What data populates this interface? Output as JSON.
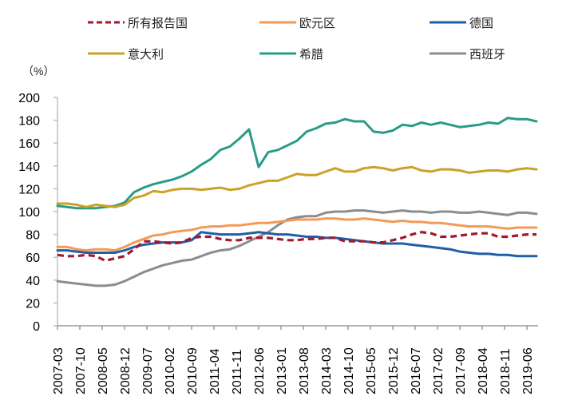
{
  "chart_data": {
    "type": "line",
    "title": "",
    "ylabel": "（%）",
    "xlabel": "",
    "ylim": [
      0,
      200
    ],
    "yticks": [
      0,
      20,
      40,
      60,
      80,
      100,
      120,
      140,
      160,
      180,
      200
    ],
    "grid": false,
    "legend_position": "top",
    "x_tick_labels": [
      "2007-03",
      "2007-10",
      "2008-05",
      "2008-12",
      "2009-07",
      "2010-02",
      "2010-09",
      "2011-04",
      "2011-11",
      "2012-06",
      "2013-01",
      "2013-08",
      "2014-03",
      "2014-10",
      "2015-05",
      "2015-12",
      "2016-07",
      "2017-02",
      "2017-09",
      "2018-04",
      "2018-11",
      "2019-06"
    ],
    "x": [
      "2007-03",
      "2007-06",
      "2007-09",
      "2007-12",
      "2008-03",
      "2008-06",
      "2008-09",
      "2008-12",
      "2009-03",
      "2009-06",
      "2009-09",
      "2009-12",
      "2010-03",
      "2010-06",
      "2010-09",
      "2010-12",
      "2011-03",
      "2011-06",
      "2011-09",
      "2011-12",
      "2012-03",
      "2012-06",
      "2012-09",
      "2012-12",
      "2013-03",
      "2013-06",
      "2013-09",
      "2013-12",
      "2014-03",
      "2014-06",
      "2014-09",
      "2014-12",
      "2015-03",
      "2015-06",
      "2015-09",
      "2015-12",
      "2016-03",
      "2016-06",
      "2016-09",
      "2016-12",
      "2017-03",
      "2017-06",
      "2017-09",
      "2017-12",
      "2018-03",
      "2018-06",
      "2018-09",
      "2018-12",
      "2019-03",
      "2019-06",
      "2019-09"
    ],
    "series": [
      {
        "name": "所有报告国",
        "color": "#A3172F",
        "dashed": true,
        "values": [
          62,
          61,
          61,
          62,
          61,
          57,
          59,
          61,
          67,
          74,
          74,
          73,
          72,
          73,
          77,
          78,
          78,
          76,
          75,
          75,
          77,
          77,
          77,
          76,
          75,
          75,
          76,
          76,
          77,
          77,
          74,
          74,
          74,
          73,
          73,
          75,
          77,
          80,
          82,
          81,
          78,
          78,
          79,
          80,
          81,
          81,
          78,
          78,
          79,
          80,
          80
        ]
      },
      {
        "name": "欧元区",
        "color": "#F39A56",
        "dashed": false,
        "values": [
          69,
          69,
          67,
          66,
          67,
          67,
          66,
          69,
          73,
          76,
          79,
          80,
          82,
          83,
          84,
          86,
          87,
          87,
          88,
          88,
          89,
          90,
          90,
          91,
          92,
          93,
          93,
          93,
          94,
          94,
          93,
          93,
          94,
          93,
          92,
          91,
          92,
          91,
          91,
          90,
          90,
          89,
          88,
          87,
          87,
          87,
          86,
          85,
          86,
          86,
          86
        ]
      },
      {
        "name": "德国",
        "color": "#1F5FA8",
        "dashed": false,
        "values": [
          66,
          66,
          65,
          64,
          64,
          64,
          64,
          66,
          69,
          71,
          72,
          73,
          73,
          73,
          75,
          82,
          81,
          80,
          80,
          80,
          81,
          82,
          81,
          80,
          80,
          79,
          78,
          78,
          77,
          77,
          76,
          75,
          74,
          73,
          72,
          72,
          72,
          71,
          70,
          69,
          68,
          67,
          65,
          64,
          63,
          63,
          62,
          62,
          61,
          61,
          61
        ]
      },
      {
        "name": "意大利",
        "color": "#C9A227",
        "dashed": false,
        "values": [
          107,
          107,
          106,
          104,
          106,
          105,
          104,
          106,
          112,
          114,
          118,
          117,
          119,
          120,
          120,
          119,
          120,
          121,
          119,
          120,
          123,
          125,
          127,
          127,
          130,
          133,
          132,
          132,
          135,
          138,
          135,
          135,
          138,
          139,
          138,
          136,
          138,
          139,
          136,
          135,
          137,
          137,
          136,
          134,
          135,
          136,
          136,
          135,
          137,
          138,
          137
        ]
      },
      {
        "name": "希腊",
        "color": "#2A9C86",
        "dashed": false,
        "values": [
          105,
          104,
          103,
          103,
          103,
          104,
          105,
          108,
          117,
          121,
          124,
          126,
          128,
          131,
          135,
          141,
          146,
          154,
          157,
          164,
          172,
          139,
          152,
          154,
          158,
          162,
          170,
          173,
          177,
          178,
          181,
          179,
          179,
          170,
          169,
          171,
          176,
          175,
          178,
          176,
          178,
          176,
          174,
          175,
          176,
          178,
          177,
          182,
          181,
          181,
          179
        ]
      },
      {
        "name": "西班牙",
        "color": "#8C8C8C",
        "dashed": false,
        "values": [
          39,
          38,
          37,
          36,
          35,
          35,
          36,
          39,
          43,
          47,
          50,
          53,
          55,
          57,
          58,
          61,
          64,
          66,
          67,
          70,
          74,
          78,
          82,
          88,
          93,
          95,
          96,
          96,
          99,
          100,
          100,
          101,
          101,
          100,
          99,
          100,
          101,
          100,
          100,
          99,
          100,
          100,
          99,
          99,
          100,
          99,
          98,
          97,
          99,
          99,
          98
        ]
      }
    ]
  }
}
